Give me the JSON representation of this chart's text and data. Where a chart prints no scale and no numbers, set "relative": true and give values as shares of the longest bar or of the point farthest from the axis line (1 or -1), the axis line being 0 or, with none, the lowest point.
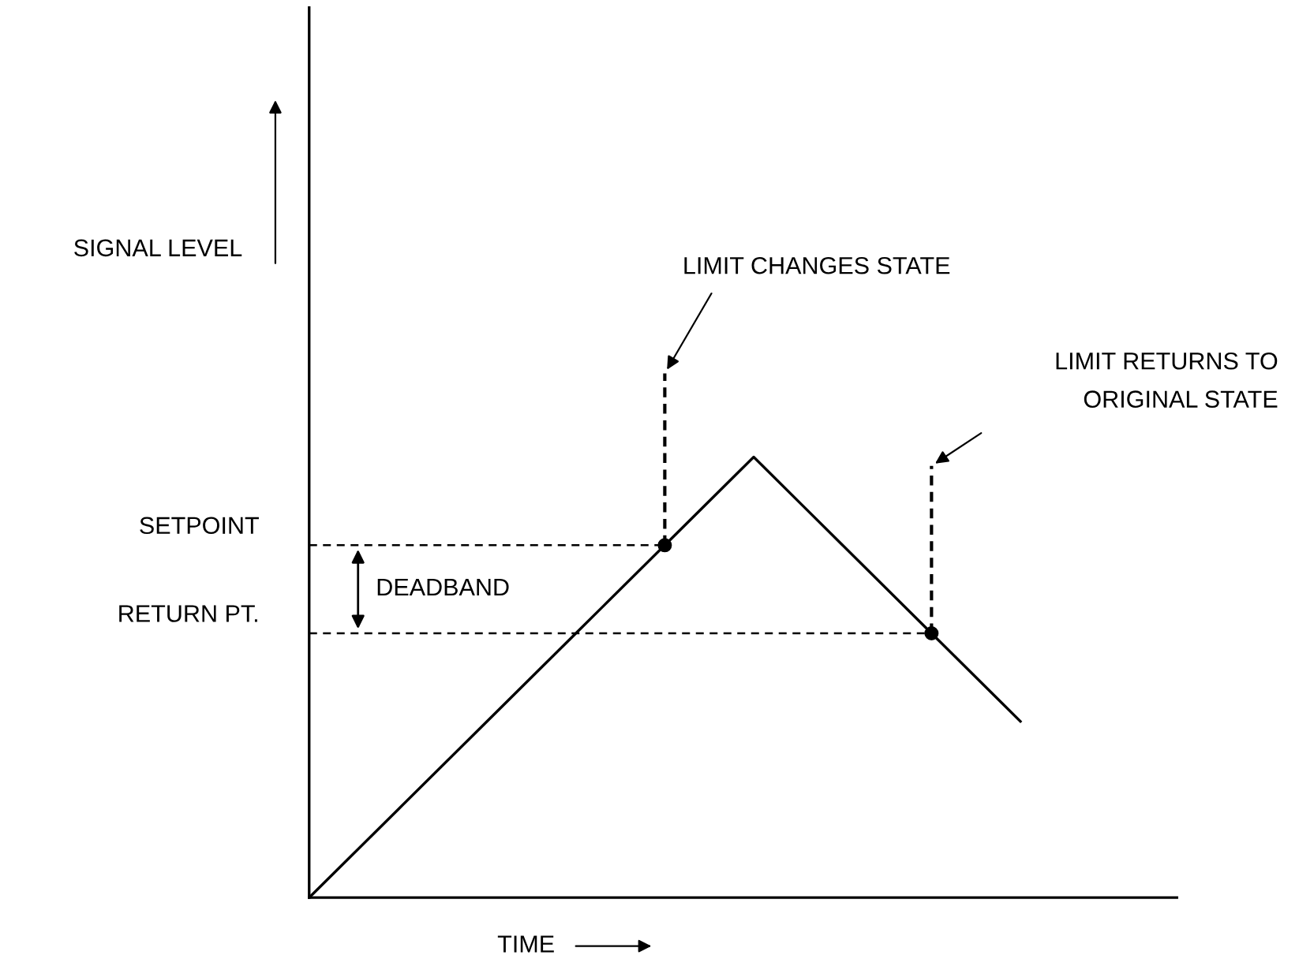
{
  "chart_data": {
    "type": "line",
    "relative": true,
    "xlabel": "TIME",
    "categories": [
      null,
      null,
      null,
      null,
      null,
      null,
      null,
      null,
      null
    ],
    "series": [
      {
        "color": "#000000",
        "values": [
          0,
          0.2,
          0.4,
          0.6,
          0.8,
          1,
          0.8,
          0.6,
          0.4
        ]
      }
    ],
    "ref_lines": [
      {
        "axis": "y",
        "value": 0.8,
        "label": "SETPOINT",
        "line_style": "dashed"
      },
      {
        "axis": "y",
        "value": 0.6,
        "label": "RETURN PT.",
        "line_style": "dashed"
      }
    ],
    "annotations": [
      "DEADBAND",
      "LIMIT CHANGES STATE",
      "LIMIT RETURNS TO\nORIGINAL STATE",
      "SIGNAL LEVEL"
    ],
    "grid": false
  }
}
